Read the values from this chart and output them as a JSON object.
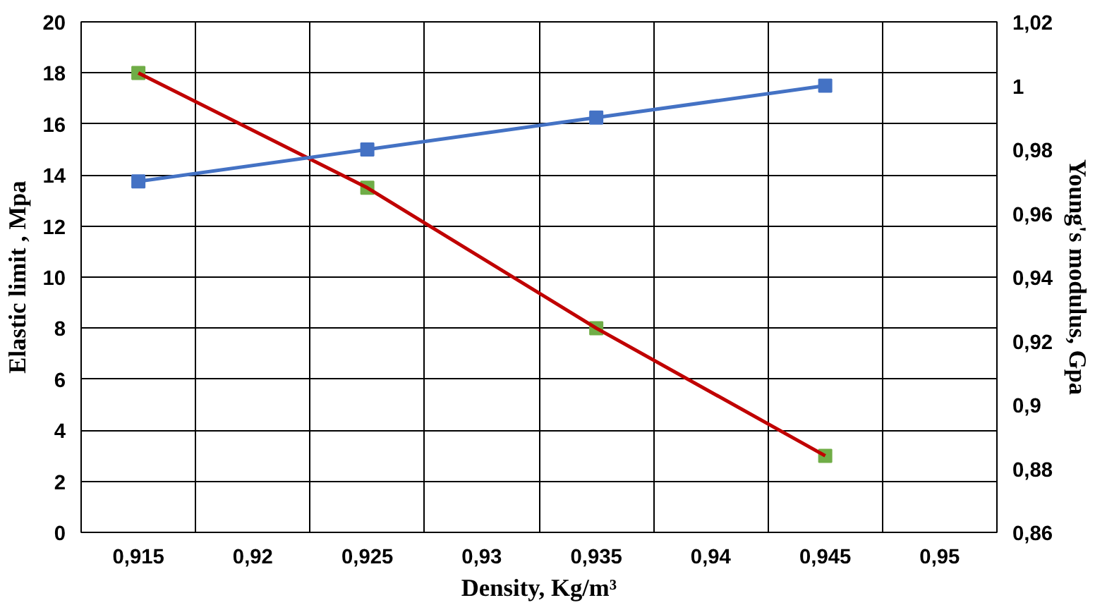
{
  "chart_data": {
    "type": "line",
    "xlabel": "Density, Kg/m³",
    "ylabel": "Elastic limit , Mpa",
    "y2label": "Young's modulus, Gpa",
    "categories": [
      "0,915",
      "0,92",
      "0,925",
      "0,93",
      "0,935",
      "0,94",
      "0,945",
      "0,95"
    ],
    "series": [
      {
        "color": "#c00000",
        "values": [
          18,
          null,
          13.5,
          null,
          8,
          null,
          3,
          null
        ],
        "marker": "none"
      },
      {
        "type": "scatter",
        "color": "#70ad47",
        "values": [
          18,
          null,
          13.5,
          null,
          8,
          null,
          3,
          null
        ],
        "marker": "square"
      },
      {
        "type": "line",
        "axis": "y2",
        "color": "#4472c4",
        "values": [
          0.97,
          null,
          0.98,
          null,
          0.99,
          null,
          1.0,
          null
        ],
        "marker": "square"
      }
    ],
    "ylim": [
      0,
      20
    ],
    "yticks": [
      0,
      2,
      4,
      6,
      8,
      10,
      12,
      14,
      16,
      18,
      20
    ],
    "y2lim": [
      0.86,
      1.02
    ],
    "y2ticks": [
      {
        "value": 0.86,
        "label": "0,86"
      },
      {
        "value": 0.88,
        "label": "0,88"
      },
      {
        "value": 0.9,
        "label": "0,9"
      },
      {
        "value": 0.92,
        "label": "0,92"
      },
      {
        "value": 0.94,
        "label": "0,94"
      },
      {
        "value": 0.96,
        "label": "0,96"
      },
      {
        "value": 0.98,
        "label": "0,98"
      },
      {
        "value": 1.0,
        "label": "1"
      },
      {
        "value": 1.02,
        "label": "1,02"
      }
    ],
    "grid": true
  }
}
